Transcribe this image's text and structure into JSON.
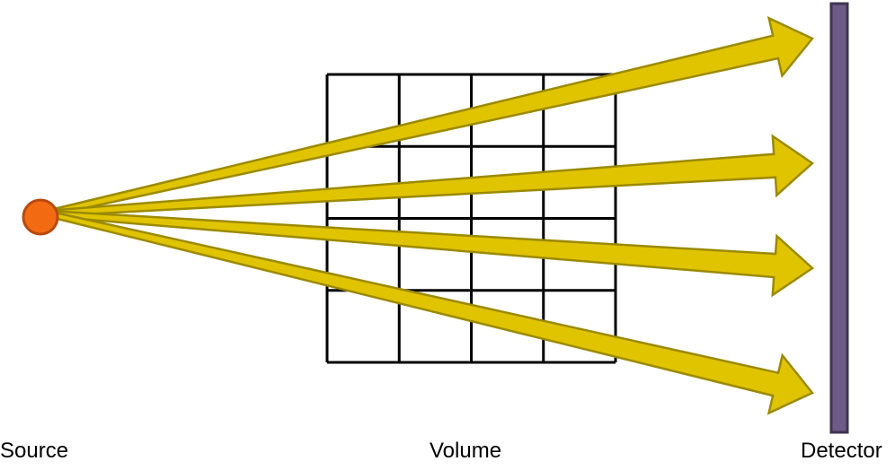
{
  "labels": {
    "source": "Source",
    "volume": "Volume",
    "detector": "Detector"
  },
  "colors": {
    "source_fill": "#F26B12",
    "source_stroke": "#B84A0E",
    "ray_fill": "#E0C400",
    "ray_stroke": "#9C8A00",
    "grid": "#000000",
    "detector_fill": "#6E5A86",
    "detector_stroke": "#3F3350"
  },
  "volume_grid": {
    "rows": 4,
    "cols": 4
  },
  "ray_count": 4
}
